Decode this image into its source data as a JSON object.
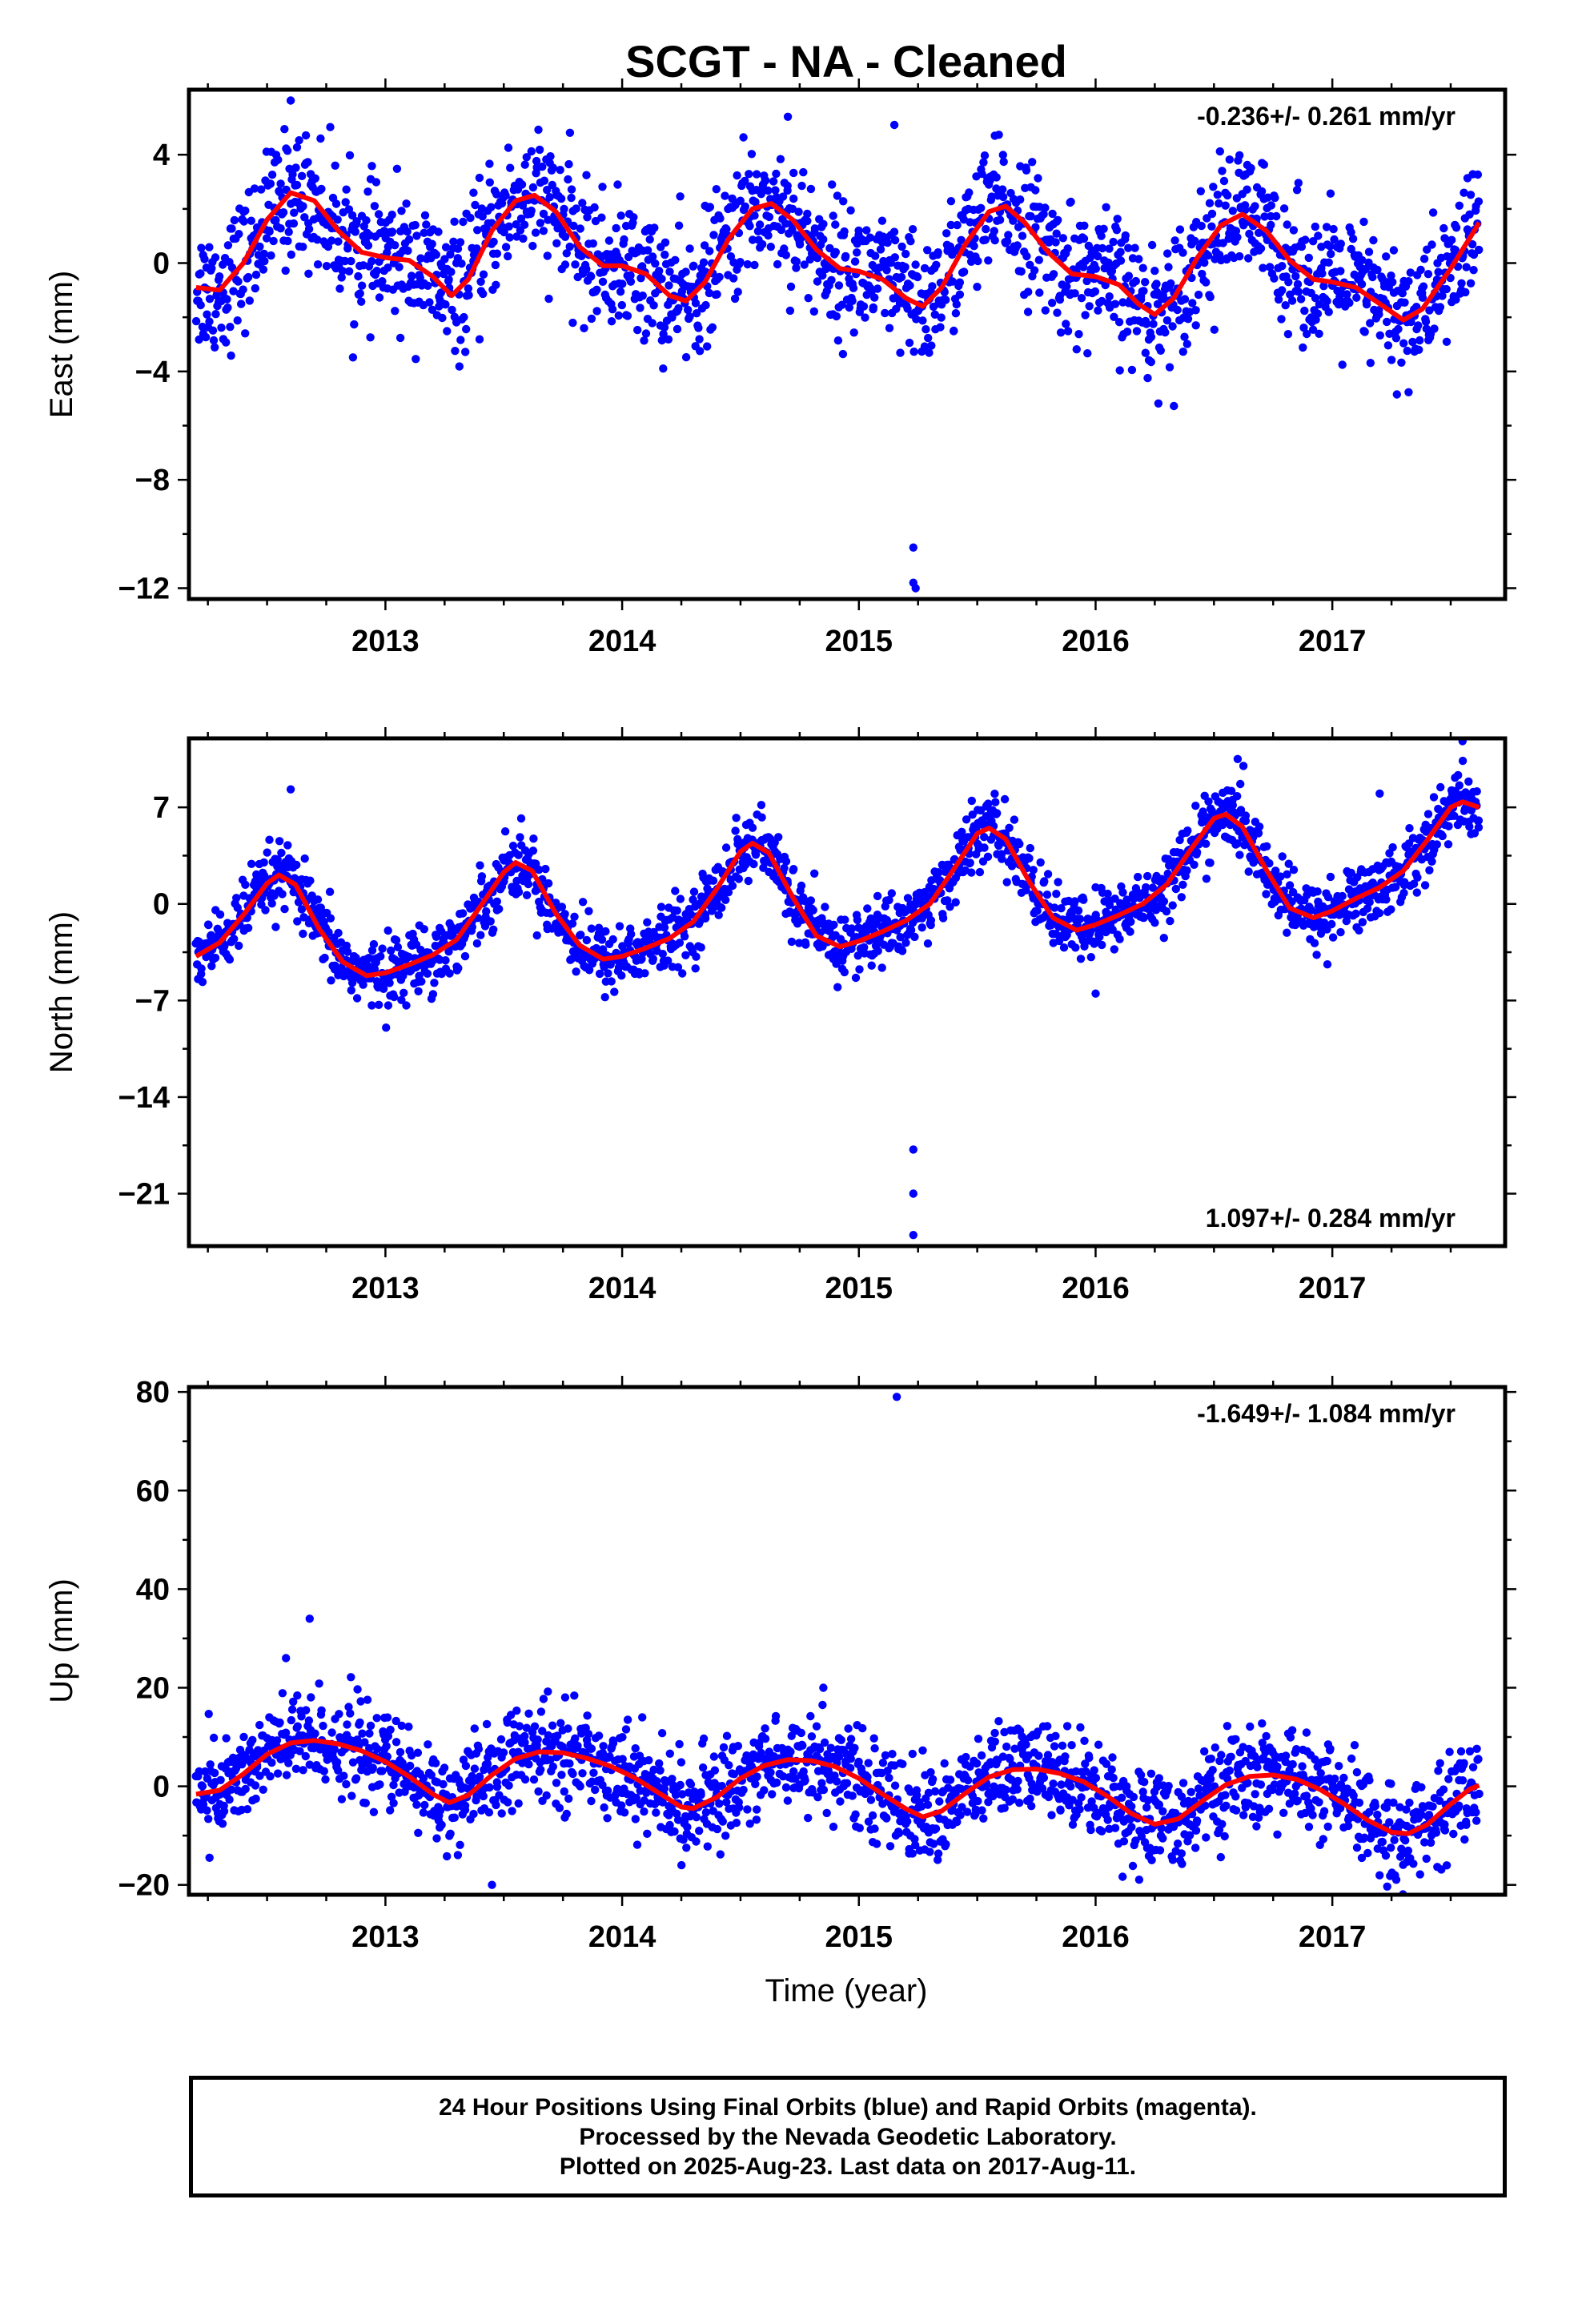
{
  "chart_data": [
    {
      "type": "scatter",
      "title": "SCGT  - NA - Cleaned",
      "ylabel": "East (mm)",
      "xlabel": "",
      "rate_label": "-0.236+/- 0.261 mm/yr",
      "rate_position": "top-right",
      "xlim": [
        2012.17,
        2017.73
      ],
      "ylim": [
        -12.4,
        6.4
      ],
      "x_ticks": [
        2013,
        2014,
        2015,
        2016,
        2017
      ],
      "x_tick_labels": [
        "2013",
        "2014",
        "2015",
        "2016",
        "2017"
      ],
      "y_ticks": [
        4,
        0,
        -4,
        -8,
        -12
      ],
      "y_tick_labels": [
        "4",
        "0",
        "−4",
        "−8",
        "−12"
      ],
      "grid": false,
      "series": [
        {
          "kind": "observations",
          "color": "#0000ff",
          "model": {
            "trend": -0.236,
            "annual": [
              [
                2012.6,
                2.6
              ],
              [
                2013.63,
                2.5
              ],
              [
                2014.63,
                2.2
              ],
              [
                2015.62,
                2.1
              ],
              [
                2016.62,
                1.8
              ],
              [
                2017.62,
                1.5
              ]
            ],
            "lows": [
              [
                2012.25,
                -1.0
              ],
              [
                2013.28,
                -1.2
              ],
              [
                2014.27,
                -1.4
              ],
              [
                2015.27,
                -1.6
              ],
              [
                2016.25,
                -1.9
              ],
              [
                2017.33,
                -2.1
              ]
            ],
            "mids": [
              [
                2012.95,
                0.3
              ],
              [
                2013.95,
                -0.1
              ],
              [
                2014.95,
                -0.3
              ],
              [
                2015.95,
                -0.5
              ],
              [
                2016.95,
                -0.7
              ]
            ]
          },
          "scatter_sd": 1.2,
          "outliers": [
            {
              "x": 2015.23,
              "y": -10.5
            },
            {
              "x": 2015.23,
              "y": -11.8
            },
            {
              "x": 2015.24,
              "y": -12.0
            },
            {
              "x": 2015.15,
              "y": 5.1
            },
            {
              "x": 2012.6,
              "y": 6.0
            },
            {
              "x": 2014.7,
              "y": 5.4
            }
          ]
        },
        {
          "kind": "fit",
          "color": "#ff0000",
          "points": [
            [
              2012.2,
              -0.9
            ],
            [
              2012.3,
              -1.0
            ],
            [
              2012.4,
              0.0
            ],
            [
              2012.5,
              1.6
            ],
            [
              2012.6,
              2.6
            ],
            [
              2012.7,
              2.3
            ],
            [
              2012.8,
              1.2
            ],
            [
              2012.9,
              0.4
            ],
            [
              2013.0,
              0.2
            ],
            [
              2013.1,
              0.1
            ],
            [
              2013.2,
              -0.5
            ],
            [
              2013.28,
              -1.2
            ],
            [
              2013.35,
              -0.6
            ],
            [
              2013.45,
              1.2
            ],
            [
              2013.55,
              2.3
            ],
            [
              2013.63,
              2.5
            ],
            [
              2013.72,
              1.9
            ],
            [
              2013.82,
              0.6
            ],
            [
              2013.92,
              -0.1
            ],
            [
              2014.0,
              -0.1
            ],
            [
              2014.1,
              -0.4
            ],
            [
              2014.2,
              -1.2
            ],
            [
              2014.27,
              -1.4
            ],
            [
              2014.35,
              -0.7
            ],
            [
              2014.45,
              0.9
            ],
            [
              2014.55,
              2.0
            ],
            [
              2014.63,
              2.2
            ],
            [
              2014.72,
              1.6
            ],
            [
              2014.82,
              0.5
            ],
            [
              2014.92,
              -0.2
            ],
            [
              2015.0,
              -0.3
            ],
            [
              2015.1,
              -0.6
            ],
            [
              2015.2,
              -1.3
            ],
            [
              2015.27,
              -1.6
            ],
            [
              2015.35,
              -0.9
            ],
            [
              2015.45,
              0.7
            ],
            [
              2015.55,
              1.9
            ],
            [
              2015.62,
              2.1
            ],
            [
              2015.7,
              1.5
            ],
            [
              2015.8,
              0.4
            ],
            [
              2015.9,
              -0.4
            ],
            [
              2016.0,
              -0.5
            ],
            [
              2016.1,
              -0.8
            ],
            [
              2016.18,
              -1.5
            ],
            [
              2016.25,
              -1.9
            ],
            [
              2016.33,
              -1.3
            ],
            [
              2016.43,
              0.2
            ],
            [
              2016.53,
              1.4
            ],
            [
              2016.62,
              1.8
            ],
            [
              2016.72,
              1.2
            ],
            [
              2016.82,
              0.1
            ],
            [
              2016.92,
              -0.6
            ],
            [
              2017.0,
              -0.7
            ],
            [
              2017.1,
              -0.9
            ],
            [
              2017.2,
              -1.5
            ],
            [
              2017.3,
              -2.1
            ],
            [
              2017.38,
              -1.7
            ],
            [
              2017.5,
              -0.2
            ],
            [
              2017.6,
              1.2
            ],
            [
              2017.62,
              1.5
            ]
          ]
        }
      ]
    },
    {
      "type": "scatter",
      "ylabel": "North (mm)",
      "xlabel": "",
      "rate_label": "1.097+/- 0.284 mm/yr",
      "rate_position": "bottom-right",
      "xlim": [
        2012.17,
        2017.73
      ],
      "ylim": [
        -24.8,
        12.0
      ],
      "x_ticks": [
        2013,
        2014,
        2015,
        2016,
        2017
      ],
      "x_tick_labels": [
        "2013",
        "2014",
        "2015",
        "2016",
        "2017"
      ],
      "y_ticks": [
        7,
        0,
        -7,
        -14,
        -21
      ],
      "y_tick_labels": [
        "7",
        "0",
        "−7",
        "−14",
        "−21"
      ],
      "grid": false,
      "series": [
        {
          "kind": "observations",
          "color": "#0000ff",
          "scatter_sd": 1.2,
          "outliers": [
            {
              "x": 2015.23,
              "y": -17.8
            },
            {
              "x": 2015.23,
              "y": -21.0
            },
            {
              "x": 2015.23,
              "y": -24.0
            },
            {
              "x": 2012.6,
              "y": 8.3
            },
            {
              "x": 2017.55,
              "y": 11.8
            },
            {
              "x": 2016.6,
              "y": 10.5
            },
            {
              "x": 2016.0,
              "y": -6.5
            },
            {
              "x": 2017.2,
              "y": 8.0
            }
          ]
        },
        {
          "kind": "fit",
          "color": "#ff0000",
          "points": [
            [
              2012.2,
              -3.8
            ],
            [
              2012.3,
              -2.8
            ],
            [
              2012.4,
              -0.8
            ],
            [
              2012.5,
              1.5
            ],
            [
              2012.55,
              2.1
            ],
            [
              2012.62,
              1.4
            ],
            [
              2012.72,
              -1.8
            ],
            [
              2012.82,
              -4.2
            ],
            [
              2012.92,
              -5.2
            ],
            [
              2013.0,
              -5.0
            ],
            [
              2013.1,
              -4.4
            ],
            [
              2013.2,
              -3.7
            ],
            [
              2013.3,
              -2.6
            ],
            [
              2013.4,
              -0.2
            ],
            [
              2013.5,
              2.3
            ],
            [
              2013.55,
              3.0
            ],
            [
              2013.62,
              2.4
            ],
            [
              2013.72,
              -0.7
            ],
            [
              2013.82,
              -3.0
            ],
            [
              2013.92,
              -4.0
            ],
            [
              2014.0,
              -3.8
            ],
            [
              2014.1,
              -3.2
            ],
            [
              2014.2,
              -2.5
            ],
            [
              2014.3,
              -1.3
            ],
            [
              2014.4,
              1.1
            ],
            [
              2014.5,
              3.8
            ],
            [
              2014.55,
              4.4
            ],
            [
              2014.62,
              3.7
            ],
            [
              2014.72,
              0.5
            ],
            [
              2014.82,
              -2.3
            ],
            [
              2014.92,
              -3.1
            ],
            [
              2015.0,
              -2.7
            ],
            [
              2015.1,
              -2.0
            ],
            [
              2015.2,
              -1.2
            ],
            [
              2015.3,
              0.0
            ],
            [
              2015.4,
              2.5
            ],
            [
              2015.5,
              5.1
            ],
            [
              2015.55,
              5.5
            ],
            [
              2015.62,
              4.7
            ],
            [
              2015.72,
              1.6
            ],
            [
              2015.82,
              -1.0
            ],
            [
              2015.92,
              -1.9
            ],
            [
              2016.0,
              -1.5
            ],
            [
              2016.1,
              -0.8
            ],
            [
              2016.2,
              0.0
            ],
            [
              2016.3,
              1.4
            ],
            [
              2016.4,
              3.9
            ],
            [
              2016.5,
              6.2
            ],
            [
              2016.55,
              6.5
            ],
            [
              2016.62,
              5.6
            ],
            [
              2016.72,
              2.5
            ],
            [
              2016.82,
              -0.3
            ],
            [
              2016.92,
              -1.0
            ],
            [
              2017.0,
              -0.5
            ],
            [
              2017.1,
              0.4
            ],
            [
              2017.2,
              1.2
            ],
            [
              2017.3,
              2.4
            ],
            [
              2017.4,
              4.6
            ],
            [
              2017.5,
              7.0
            ],
            [
              2017.55,
              7.4
            ],
            [
              2017.62,
              7.0
            ]
          ]
        }
      ]
    },
    {
      "type": "scatter",
      "ylabel": "Up (mm)",
      "xlabel": "Time (year)",
      "rate_label": "-1.649+/- 1.084 mm/yr",
      "rate_position": "top-right",
      "xlim": [
        2012.17,
        2017.73
      ],
      "ylim": [
        -22,
        81
      ],
      "x_ticks": [
        2013,
        2014,
        2015,
        2016,
        2017
      ],
      "x_tick_labels": [
        "2013",
        "2014",
        "2015",
        "2016",
        "2017"
      ],
      "y_ticks": [
        80,
        60,
        40,
        20,
        0,
        -20
      ],
      "y_tick_labels": [
        "80",
        "60",
        "40",
        "20",
        "0",
        "−20"
      ],
      "grid": false,
      "series": [
        {
          "kind": "observations",
          "color": "#0000ff",
          "scatter_sd": 4.8,
          "outliers": [
            {
              "x": 2015.16,
              "y": 79
            },
            {
              "x": 2012.68,
              "y": 34
            },
            {
              "x": 2014.85,
              "y": 20
            },
            {
              "x": 2013.45,
              "y": -20
            },
            {
              "x": 2012.58,
              "y": 26
            }
          ]
        },
        {
          "kind": "fit",
          "color": "#ff0000",
          "points": [
            [
              2012.2,
              -1.6
            ],
            [
              2012.3,
              -0.8
            ],
            [
              2012.4,
              2.5
            ],
            [
              2012.5,
              6.5
            ],
            [
              2012.6,
              8.8
            ],
            [
              2012.7,
              9.3
            ],
            [
              2012.8,
              8.6
            ],
            [
              2012.9,
              7.2
            ],
            [
              2013.0,
              5.0
            ],
            [
              2013.1,
              2.0
            ],
            [
              2013.2,
              -1.6
            ],
            [
              2013.27,
              -3.3
            ],
            [
              2013.35,
              -1.8
            ],
            [
              2013.45,
              2.3
            ],
            [
              2013.55,
              5.6
            ],
            [
              2013.65,
              7.0
            ],
            [
              2013.75,
              6.8
            ],
            [
              2013.85,
              5.7
            ],
            [
              2013.95,
              4.1
            ],
            [
              2014.05,
              1.8
            ],
            [
              2014.15,
              -1.2
            ],
            [
              2014.25,
              -4.2
            ],
            [
              2014.3,
              -4.5
            ],
            [
              2014.4,
              -2.2
            ],
            [
              2014.5,
              1.6
            ],
            [
              2014.6,
              4.2
            ],
            [
              2014.7,
              5.4
            ],
            [
              2014.8,
              5.2
            ],
            [
              2014.9,
              4.0
            ],
            [
              2015.0,
              1.6
            ],
            [
              2015.1,
              -1.6
            ],
            [
              2015.2,
              -4.6
            ],
            [
              2015.27,
              -6.2
            ],
            [
              2015.35,
              -5.0
            ],
            [
              2015.45,
              -1.4
            ],
            [
              2015.55,
              1.9
            ],
            [
              2015.65,
              3.4
            ],
            [
              2015.75,
              3.5
            ],
            [
              2015.85,
              2.6
            ],
            [
              2015.95,
              0.9
            ],
            [
              2016.05,
              -2.0
            ],
            [
              2016.15,
              -5.5
            ],
            [
              2016.25,
              -7.7
            ],
            [
              2016.35,
              -6.6
            ],
            [
              2016.45,
              -3.0
            ],
            [
              2016.55,
              0.3
            ],
            [
              2016.65,
              2.0
            ],
            [
              2016.75,
              2.3
            ],
            [
              2016.85,
              1.4
            ],
            [
              2016.95,
              -0.7
            ],
            [
              2017.05,
              -3.6
            ],
            [
              2017.15,
              -6.9
            ],
            [
              2017.25,
              -9.3
            ],
            [
              2017.32,
              -9.6
            ],
            [
              2017.4,
              -7.8
            ],
            [
              2017.5,
              -3.6
            ],
            [
              2017.58,
              -0.6
            ],
            [
              2017.62,
              0.2
            ]
          ]
        }
      ]
    }
  ],
  "footer": {
    "line1": "24 Hour Positions Using Final Orbits (blue) and Rapid Orbits (magenta).",
    "line2": "Processed by the Nevada Geodetic Laboratory.",
    "line3": "Plotted on 2025-Aug-23. Last data on 2017-Aug-11."
  }
}
